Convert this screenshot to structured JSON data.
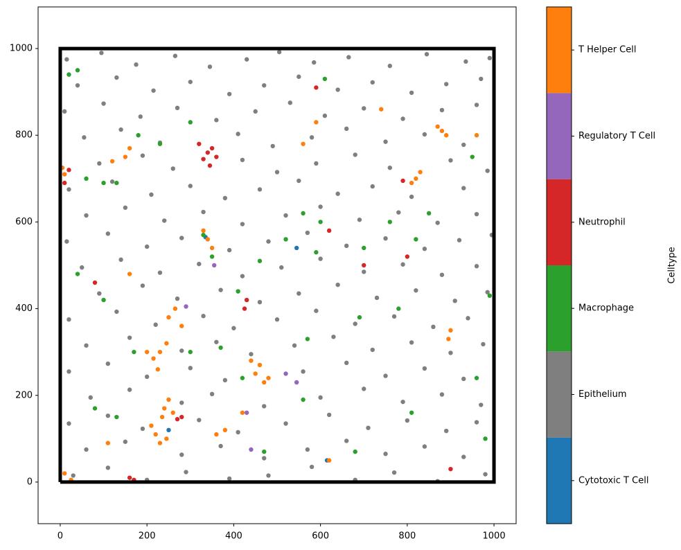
{
  "chart_data": {
    "type": "scatter",
    "xlim": [
      -51,
      1051
    ],
    "ylim": [
      -96,
      1096
    ],
    "xticks": [
      0,
      200,
      400,
      600,
      800,
      1000
    ],
    "yticks": [
      0,
      200,
      400,
      600,
      800,
      1000
    ],
    "colorbar_label": "Celltype",
    "boundary": {
      "x": [
        0,
        1000,
        1000,
        0,
        0
      ],
      "y": [
        0,
        0,
        1000,
        1000,
        0
      ],
      "color": "#000000"
    },
    "series": [
      {
        "name": "Cytotoxic T Cell",
        "color": "#1f77b4",
        "x": [
          545,
          335,
          615,
          250
        ],
        "y": [
          540,
          565,
          50,
          120
        ]
      },
      {
        "name": "Epithelium",
        "color": "#7f7f7f",
        "x": [
          15,
          95,
          175,
          265,
          345,
          430,
          505,
          585,
          665,
          760,
          845,
          935,
          990,
          40,
          130,
          215,
          300,
          390,
          470,
          550,
          640,
          720,
          810,
          890,
          970,
          10,
          100,
          185,
          270,
          360,
          450,
          530,
          610,
          700,
          790,
          880,
          960,
          55,
          140,
          230,
          410,
          490,
          580,
          660,
          750,
          840,
          930,
          90,
          190,
          260,
          420,
          500,
          590,
          680,
          760,
          900,
          985,
          20,
          120,
          210,
          300,
          380,
          460,
          550,
          640,
          720,
          810,
          930,
          60,
          150,
          240,
          330,
          420,
          520,
          600,
          690,
          780,
          870,
          960,
          15,
          110,
          200,
          280,
          390,
          480,
          570,
          660,
          750,
          840,
          920,
          995,
          50,
          140,
          230,
          320,
          420,
          510,
          600,
          700,
          790,
          880,
          960,
          90,
          190,
          270,
          370,
          460,
          550,
          640,
          730,
          820,
          910,
          985,
          20,
          130,
          220,
          330,
          400,
          500,
          590,
          680,
          770,
          860,
          940,
          60,
          160,
          280,
          360,
          440,
          540,
          630,
          720,
          810,
          900,
          975,
          20,
          110,
          200,
          300,
          380,
          560,
          660,
          750,
          840,
          930,
          70,
          160,
          280,
          350,
          470,
          600,
          700,
          790,
          880,
          970,
          20,
          110,
          190,
          320,
          410,
          520,
          620,
          710,
          800,
          890,
          960,
          60,
          150,
          280,
          370,
          470,
          570,
          660,
          750,
          840,
          930,
          30,
          110,
          200,
          290,
          390,
          480,
          580,
          680,
          770,
          870,
          980
        ],
        "y": [
          975,
          990,
          963,
          983,
          958,
          975,
          992,
          968,
          980,
          960,
          987,
          970,
          978,
          915,
          933,
          903,
          923,
          895,
          915,
          935,
          905,
          922,
          898,
          918,
          930,
          855,
          873,
          843,
          863,
          835,
          855,
          875,
          845,
          862,
          838,
          858,
          870,
          795,
          813,
          783,
          803,
          775,
          795,
          815,
          785,
          802,
          778,
          735,
          753,
          723,
          743,
          715,
          735,
          755,
          725,
          742,
          718,
          675,
          693,
          663,
          683,
          655,
          675,
          695,
          665,
          682,
          658,
          678,
          615,
          633,
          603,
          623,
          595,
          615,
          635,
          605,
          622,
          598,
          618,
          555,
          573,
          543,
          563,
          535,
          555,
          575,
          545,
          562,
          538,
          558,
          570,
          495,
          513,
          483,
          503,
          475,
          495,
          515,
          485,
          502,
          478,
          498,
          435,
          453,
          423,
          443,
          415,
          435,
          455,
          425,
          442,
          418,
          438,
          375,
          393,
          363,
          383,
          355,
          375,
          395,
          365,
          382,
          358,
          378,
          315,
          333,
          303,
          323,
          295,
          315,
          335,
          305,
          322,
          298,
          318,
          255,
          273,
          243,
          263,
          235,
          255,
          275,
          245,
          262,
          238,
          195,
          213,
          183,
          203,
          175,
          195,
          215,
          185,
          202,
          178,
          135,
          153,
          123,
          143,
          115,
          135,
          155,
          125,
          142,
          118,
          138,
          75,
          93,
          63,
          83,
          55,
          75,
          95,
          65,
          82,
          58,
          15,
          33,
          5,
          23,
          8,
          15,
          35,
          5,
          22,
          2,
          18
        ]
      },
      {
        "name": "Macrophage",
        "color": "#2ca02c",
        "x": [
          20,
          40,
          60,
          100,
          180,
          230,
          300,
          330,
          350,
          370,
          410,
          460,
          520,
          560,
          600,
          700,
          760,
          820,
          850,
          950,
          990,
          980,
          810,
          780,
          680,
          560,
          470,
          420,
          300,
          130,
          80,
          100,
          40,
          170,
          570,
          690,
          960,
          130,
          590,
          610
        ],
        "y": [
          940,
          950,
          700,
          690,
          800,
          780,
          830,
          570,
          520,
          310,
          440,
          510,
          560,
          620,
          600,
          540,
          600,
          560,
          620,
          750,
          430,
          100,
          160,
          400,
          70,
          190,
          70,
          240,
          300,
          150,
          170,
          420,
          480,
          300,
          330,
          380,
          240,
          690,
          530,
          930
        ]
      },
      {
        "name": "Neutrophil",
        "color": "#d62728",
        "x": [
          340,
          330,
          350,
          360,
          320,
          345,
          20,
          10,
          430,
          425,
          160,
          170,
          280,
          270,
          900,
          800,
          790,
          620,
          700,
          80,
          590
        ],
        "y": [
          760,
          745,
          770,
          750,
          780,
          730,
          720,
          690,
          420,
          400,
          10,
          5,
          150,
          145,
          30,
          520,
          695,
          580,
          500,
          460,
          910
        ]
      },
      {
        "name": "Regulatory T Cell",
        "color": "#9467bd",
        "x": [
          520,
          545,
          430,
          440,
          290,
          355
        ],
        "y": [
          250,
          230,
          160,
          75,
          405,
          500
        ]
      },
      {
        "name": "T Helper Cell",
        "color": "#ff7f0e",
        "x": [
          230,
          215,
          245,
          225,
          200,
          240,
          250,
          235,
          260,
          220,
          230,
          210,
          245,
          250,
          265,
          280,
          460,
          450,
          470,
          440,
          480,
          340,
          350,
          330,
          820,
          810,
          830,
          880,
          870,
          890,
          900,
          895,
          150,
          120,
          160,
          10,
          5,
          10,
          25,
          160,
          620,
          360,
          380,
          560,
          590,
          110,
          420,
          740,
          960
        ],
        "y": [
          300,
          285,
          320,
          260,
          300,
          170,
          190,
          150,
          160,
          110,
          90,
          130,
          100,
          380,
          400,
          360,
          270,
          250,
          230,
          280,
          240,
          560,
          540,
          580,
          700,
          690,
          715,
          810,
          820,
          800,
          350,
          330,
          750,
          740,
          770,
          710,
          725,
          20,
          5,
          480,
          50,
          110,
          120,
          780,
          830,
          90,
          160,
          860,
          800
        ]
      }
    ]
  }
}
